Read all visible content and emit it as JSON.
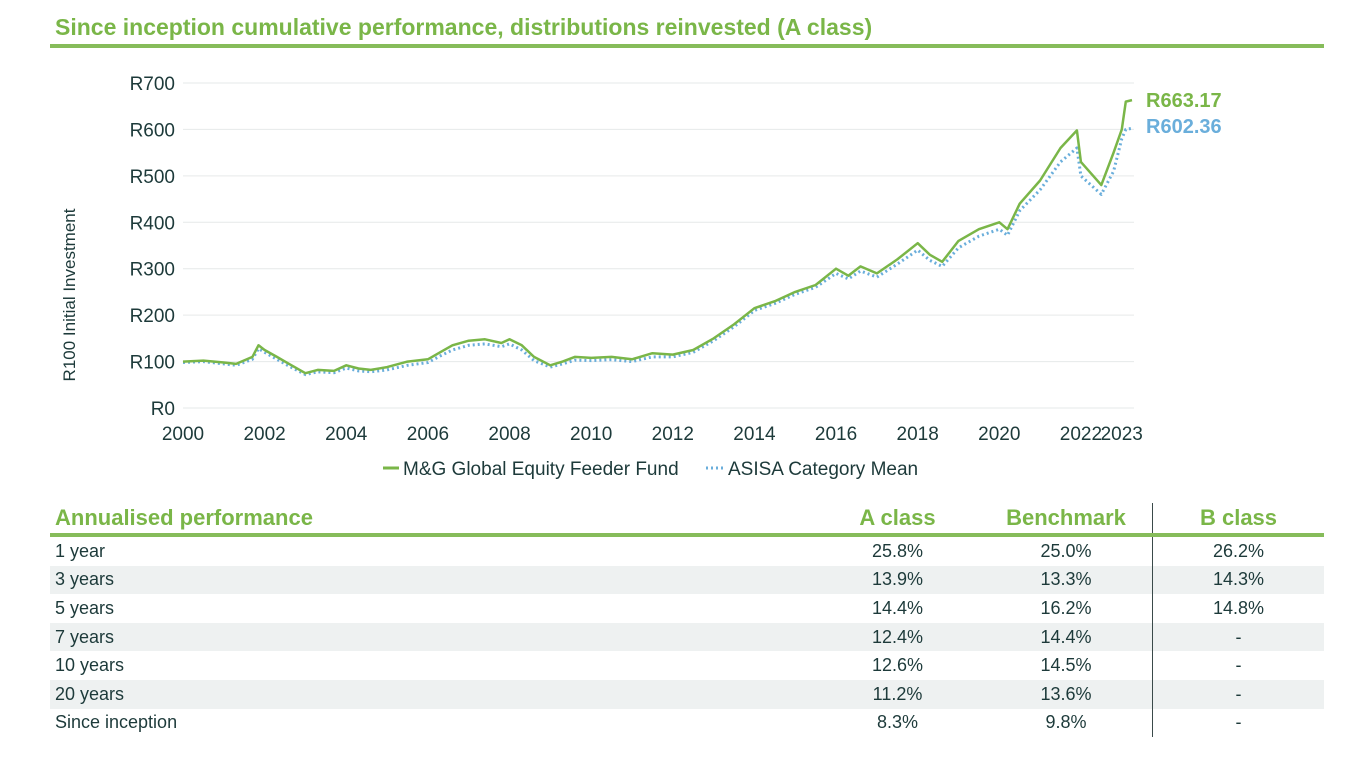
{
  "chart_data": {
    "type": "line",
    "title": "Since inception cumulative performance, distributions reinvested (A class)",
    "ylabel": "R100 Initial Investment",
    "ylim": [
      0,
      700
    ],
    "yticks": [
      0,
      100,
      200,
      300,
      400,
      500,
      600,
      700
    ],
    "ytick_labels": [
      "R0",
      "R100",
      "R200",
      "R300",
      "R400",
      "R500",
      "R600",
      "R700"
    ],
    "xlim": [
      2000,
      2023.3
    ],
    "xticks": [
      2000,
      2002,
      2004,
      2006,
      2008,
      2010,
      2012,
      2014,
      2016,
      2018,
      2020,
      2022,
      2023
    ],
    "legend_position": "bottom",
    "end_labels": [
      "R663.17",
      "R602.36"
    ],
    "series": [
      {
        "name": "M&G Global Equity Feeder Fund",
        "color": "#7ab648",
        "style": "solid",
        "x": [
          2000,
          2000.5,
          2001,
          2001.3,
          2001.7,
          2001.85,
          2002,
          2002.3,
          2002.6,
          2003,
          2003.3,
          2003.7,
          2004,
          2004.3,
          2004.6,
          2005,
          2005.5,
          2006,
          2006.3,
          2006.6,
          2007,
          2007.4,
          2007.8,
          2008,
          2008.3,
          2008.6,
          2009,
          2009.3,
          2009.6,
          2010,
          2010.5,
          2011,
          2011.5,
          2012,
          2012.5,
          2013,
          2013.5,
          2014,
          2014.5,
          2015,
          2015.5,
          2016,
          2016.3,
          2016.6,
          2017,
          2017.5,
          2018,
          2018.3,
          2018.6,
          2019,
          2019.5,
          2020,
          2020.2,
          2020.5,
          2021,
          2021.5,
          2021.9,
          2022,
          2022.5,
          2022.8,
          2023,
          2023.1,
          2023.25
        ],
        "y": [
          100,
          102,
          98,
          95,
          110,
          135,
          125,
          110,
          95,
          75,
          82,
          80,
          92,
          85,
          82,
          88,
          100,
          105,
          120,
          135,
          145,
          148,
          140,
          148,
          135,
          110,
          92,
          100,
          110,
          108,
          110,
          105,
          118,
          115,
          125,
          150,
          180,
          215,
          230,
          250,
          265,
          300,
          285,
          305,
          290,
          320,
          355,
          330,
          315,
          360,
          385,
          400,
          385,
          440,
          490,
          560,
          598,
          530,
          480,
          550,
          600,
          660,
          663.17
        ]
      },
      {
        "name": "ASISA Category Mean",
        "color": "#6aaedb",
        "style": "dotted",
        "x": [
          2000,
          2000.5,
          2001,
          2001.3,
          2001.7,
          2001.85,
          2002,
          2002.3,
          2002.6,
          2003,
          2003.3,
          2003.7,
          2004,
          2004.3,
          2004.6,
          2005,
          2005.5,
          2006,
          2006.3,
          2006.6,
          2007,
          2007.4,
          2007.8,
          2008,
          2008.3,
          2008.6,
          2009,
          2009.3,
          2009.6,
          2010,
          2010.5,
          2011,
          2011.5,
          2012,
          2012.5,
          2013,
          2013.5,
          2014,
          2014.5,
          2015,
          2015.5,
          2016,
          2016.3,
          2016.6,
          2017,
          2017.5,
          2018,
          2018.3,
          2018.6,
          2019,
          2019.5,
          2020,
          2020.2,
          2020.5,
          2021,
          2021.5,
          2021.9,
          2022,
          2022.5,
          2022.8,
          2023,
          2023.1,
          2023.25
        ],
        "y": [
          98,
          100,
          95,
          92,
          105,
          128,
          120,
          105,
          90,
          72,
          78,
          76,
          86,
          80,
          78,
          82,
          92,
          98,
          112,
          125,
          135,
          138,
          132,
          138,
          125,
          102,
          88,
          95,
          103,
          102,
          104,
          100,
          110,
          110,
          120,
          145,
          175,
          210,
          225,
          245,
          260,
          290,
          278,
          295,
          282,
          310,
          340,
          318,
          305,
          345,
          370,
          385,
          372,
          425,
          470,
          530,
          560,
          500,
          460,
          510,
          580,
          600,
          602.36
        ]
      }
    ]
  },
  "table": {
    "headers": [
      "Annualised performance",
      "A class",
      "Benchmark",
      "B class"
    ],
    "rows": [
      [
        "1 year",
        "25.8%",
        "25.0%",
        "26.2%"
      ],
      [
        "3 years",
        "13.9%",
        "13.3%",
        "14.3%"
      ],
      [
        "5 years",
        "14.4%",
        "16.2%",
        "14.8%"
      ],
      [
        "7 years",
        "12.4%",
        "14.4%",
        "-"
      ],
      [
        "10 years",
        "12.6%",
        "14.5%",
        "-"
      ],
      [
        "20 years",
        "11.2%",
        "13.6%",
        "-"
      ],
      [
        "Since inception",
        "8.3%",
        "9.8%",
        "-"
      ]
    ]
  }
}
